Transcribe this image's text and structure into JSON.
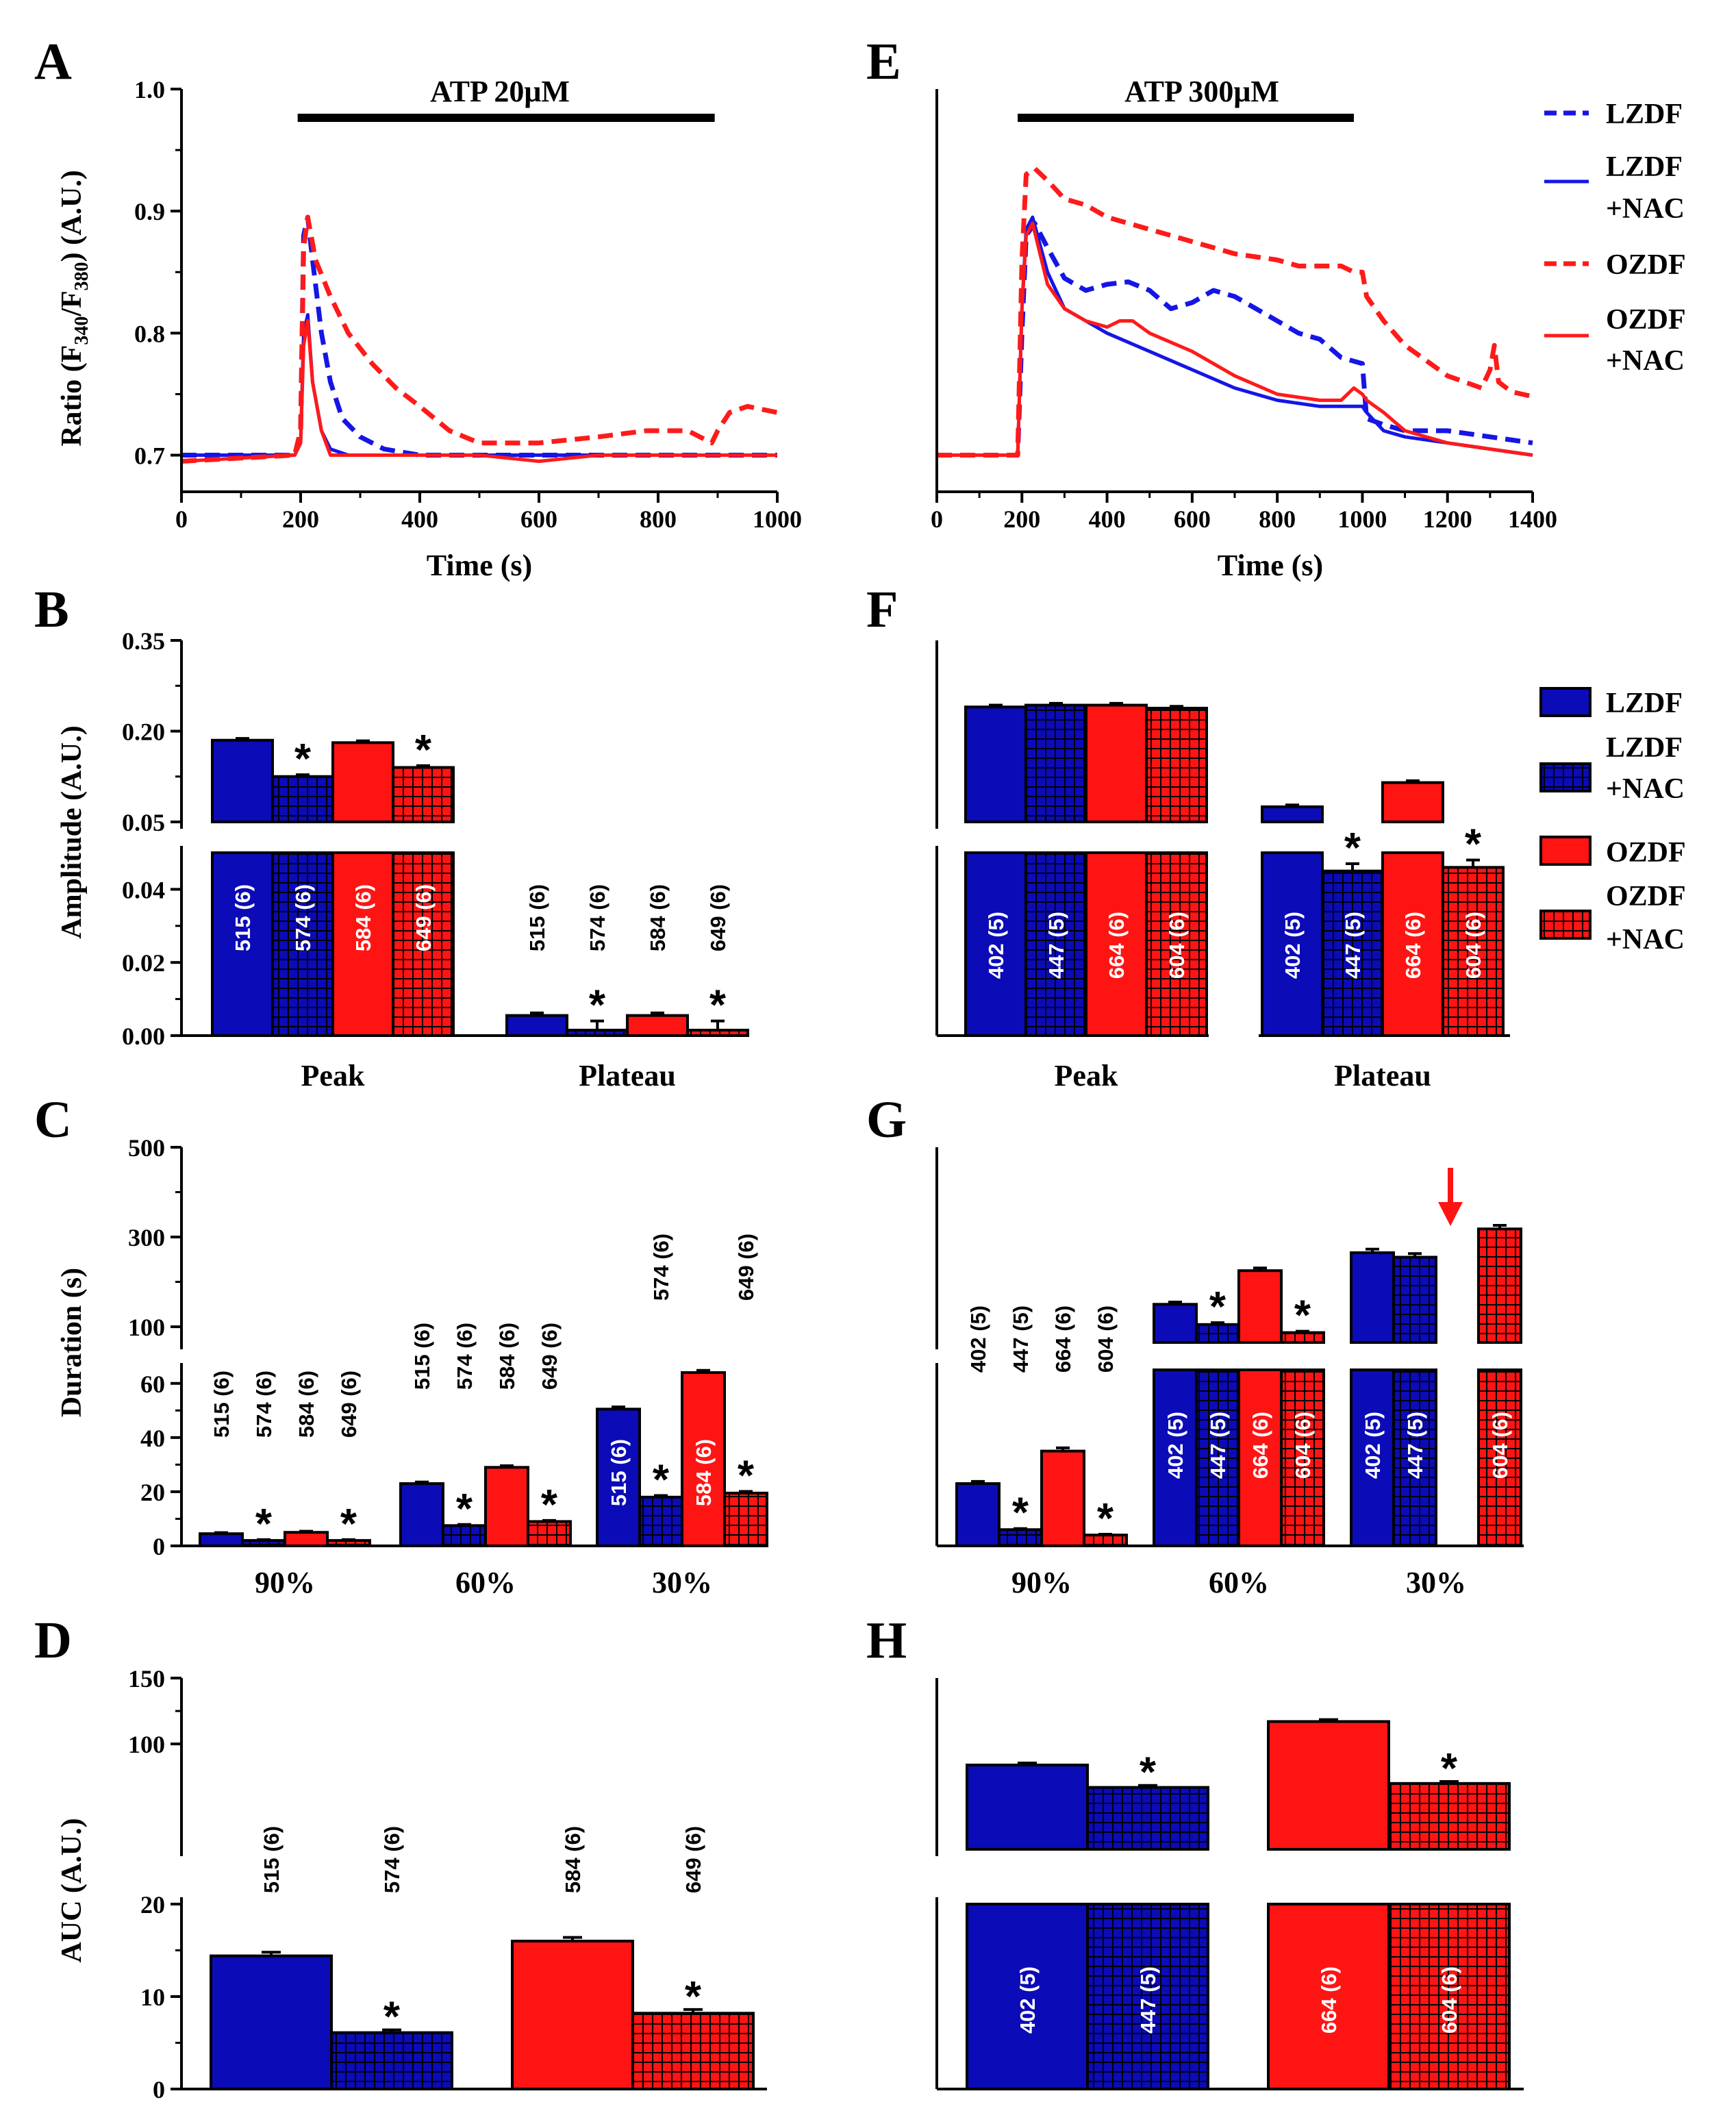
{
  "panel_labels": {
    "A": "A",
    "B": "B",
    "C": "C",
    "D": "D",
    "E": "E",
    "F": "F",
    "G": "G",
    "H": "H"
  },
  "colors": {
    "LZDF": "#1515e6",
    "OZDF": "#ff1a1a",
    "LZDF_bar": "#0b0bb8",
    "OZDF_bar": "#ff1414"
  },
  "legend": {
    "lines": [
      {
        "label": [
          "LZDF"
        ],
        "color": "#1515e6",
        "style": "dashed"
      },
      {
        "label": [
          "LZDF",
          "+NAC"
        ],
        "color": "#1515e6",
        "style": "solid"
      },
      {
        "label": [
          "OZDF"
        ],
        "color": "#ff1a1a",
        "style": "dashed"
      },
      {
        "label": [
          "OZDF",
          "+NAC"
        ],
        "color": "#ff1a1a",
        "style": "solid"
      }
    ],
    "bars": [
      {
        "label": [
          "LZDF"
        ],
        "color": "#0b0bb8",
        "hatched": false
      },
      {
        "label": [
          "LZDF",
          "+NAC"
        ],
        "color": "#0b0bb8",
        "hatched": true
      },
      {
        "label": [
          "OZDF"
        ],
        "color": "#ff1414",
        "hatched": false
      },
      {
        "label": [
          "OZDF",
          "+NAC"
        ],
        "color": "#ff1414",
        "hatched": true
      }
    ]
  },
  "chart_data": [
    {
      "id": "A",
      "type": "line",
      "title": "ATP 20μM",
      "xlabel": "Time (s)",
      "ylabel": "Ratio (F340/F380) (A.U.)",
      "ylabel_main": "Ratio (F",
      "ylabel_sub1": "340",
      "ylabel_mid": "/F",
      "ylabel_sub2": "380",
      "ylabel_end": ") (A.U.)",
      "xlim": [
        0,
        1000
      ],
      "ylim": [
        0.67,
        1.0
      ],
      "xticks": [
        "0",
        "200",
        "400",
        "600",
        "800",
        "1000"
      ],
      "yticks": [
        "0.7",
        "0.8",
        "0.9",
        "1.0"
      ],
      "stimulus": {
        "start": 195,
        "end": 895
      },
      "series": [
        {
          "name": "LZDF",
          "x": [
            0,
            190,
            200,
            205,
            212,
            220,
            235,
            250,
            270,
            300,
            340,
            400,
            500,
            600,
            700,
            800,
            900,
            1000
          ],
          "y": [
            0.7,
            0.7,
            0.72,
            0.88,
            0.895,
            0.86,
            0.8,
            0.76,
            0.73,
            0.715,
            0.705,
            0.7,
            0.7,
            0.7,
            0.7,
            0.7,
            0.7,
            0.7
          ]
        },
        {
          "name": "LZDF+NAC",
          "x": [
            0,
            190,
            200,
            205,
            212,
            220,
            235,
            250,
            280,
            350,
            500,
            700,
            900,
            1000
          ],
          "y": [
            0.7,
            0.7,
            0.71,
            0.8,
            0.815,
            0.76,
            0.72,
            0.705,
            0.7,
            0.7,
            0.7,
            0.7,
            0.7,
            0.7
          ]
        },
        {
          "name": "OZDF",
          "x": [
            0,
            190,
            200,
            205,
            212,
            225,
            250,
            280,
            320,
            360,
            400,
            450,
            500,
            600,
            700,
            780,
            850,
            890,
            900,
            920,
            950,
            1000
          ],
          "y": [
            0.695,
            0.7,
            0.72,
            0.87,
            0.895,
            0.86,
            0.83,
            0.8,
            0.775,
            0.755,
            0.74,
            0.72,
            0.71,
            0.71,
            0.715,
            0.72,
            0.72,
            0.71,
            0.72,
            0.735,
            0.74,
            0.735
          ]
        },
        {
          "name": "OZDF+NAC",
          "x": [
            0,
            190,
            200,
            205,
            212,
            220,
            235,
            250,
            300,
            400,
            500,
            600,
            700,
            800,
            900,
            1000
          ],
          "y": [
            0.695,
            0.7,
            0.71,
            0.79,
            0.81,
            0.76,
            0.72,
            0.7,
            0.7,
            0.7,
            0.7,
            0.695,
            0.7,
            0.7,
            0.7,
            0.7
          ]
        }
      ]
    },
    {
      "id": "E",
      "type": "line",
      "title": "ATP 300μM",
      "xlabel": "Time (s)",
      "xlim": [
        0,
        1400
      ],
      "ylim": [
        0.67,
        1.0
      ],
      "xticks": [
        "0",
        "200",
        "400",
        "600",
        "800",
        "1000",
        "1200",
        "1400"
      ],
      "stimulus": {
        "start": 190,
        "end": 980
      },
      "series": [
        {
          "name": "LZDF",
          "x": [
            0,
            190,
            200,
            210,
            230,
            260,
            300,
            350,
            400,
            450,
            500,
            550,
            600,
            650,
            700,
            750,
            800,
            850,
            900,
            950,
            1000,
            1010,
            1050,
            1100,
            1200,
            1300,
            1400
          ],
          "y": [
            0.7,
            0.7,
            0.8,
            0.88,
            0.89,
            0.87,
            0.845,
            0.835,
            0.84,
            0.842,
            0.835,
            0.82,
            0.825,
            0.835,
            0.83,
            0.82,
            0.81,
            0.8,
            0.795,
            0.78,
            0.775,
            0.73,
            0.725,
            0.72,
            0.72,
            0.715,
            0.71
          ]
        },
        {
          "name": "LZDF+NAC",
          "x": [
            0,
            190,
            200,
            210,
            225,
            260,
            300,
            350,
            400,
            500,
            600,
            700,
            800,
            900,
            980,
            1000,
            1010,
            1050,
            1100,
            1200,
            1300,
            1400
          ],
          "y": [
            0.7,
            0.7,
            0.82,
            0.885,
            0.895,
            0.85,
            0.82,
            0.81,
            0.8,
            0.785,
            0.77,
            0.755,
            0.745,
            0.74,
            0.74,
            0.74,
            0.735,
            0.72,
            0.715,
            0.71,
            0.705,
            0.7
          ]
        },
        {
          "name": "OZDF",
          "x": [
            0,
            190,
            200,
            210,
            230,
            260,
            300,
            350,
            400,
            500,
            600,
            700,
            800,
            850,
            900,
            950,
            980,
            1000,
            1010,
            1050,
            1100,
            1200,
            1280,
            1300,
            1310,
            1320,
            1350,
            1400
          ],
          "y": [
            0.7,
            0.7,
            0.86,
            0.93,
            0.935,
            0.925,
            0.91,
            0.905,
            0.895,
            0.885,
            0.875,
            0.865,
            0.86,
            0.855,
            0.855,
            0.855,
            0.85,
            0.85,
            0.83,
            0.81,
            0.79,
            0.765,
            0.755,
            0.77,
            0.79,
            0.76,
            0.752,
            0.748
          ]
        },
        {
          "name": "OZDF+NAC",
          "x": [
            0,
            190,
            200,
            210,
            225,
            260,
            300,
            350,
            400,
            430,
            460,
            500,
            600,
            700,
            800,
            900,
            950,
            980,
            1000,
            1010,
            1050,
            1100,
            1200,
            1300,
            1400
          ],
          "y": [
            0.7,
            0.7,
            0.82,
            0.88,
            0.89,
            0.84,
            0.82,
            0.81,
            0.805,
            0.81,
            0.81,
            0.8,
            0.785,
            0.765,
            0.75,
            0.745,
            0.745,
            0.755,
            0.75,
            0.745,
            0.735,
            0.72,
            0.71,
            0.705,
            0.7
          ]
        }
      ]
    },
    {
      "id": "B",
      "type": "bar",
      "ylabel": "Amplitude (A.U.)",
      "categories": [
        "Peak",
        "Plateau"
      ],
      "broken_axis": {
        "lower": [
          0,
          0.05
        ],
        "upper": [
          0.05,
          0.35
        ]
      },
      "lower_ticks": [
        "0.00",
        "0.02",
        "0.04"
      ],
      "upper_ticks": [
        "0.05",
        "0.20",
        "0.35"
      ],
      "series": [
        {
          "name": "LZDF",
          "values": [
            0.185,
            0.0055
          ],
          "errors": [
            0.003,
            0.0007
          ],
          "n": [
            "515 (6)",
            "515 (6)"
          ],
          "sig": [
            false,
            false
          ]
        },
        {
          "name": "LZDF+NAC",
          "values": [
            0.125,
            0.0015
          ],
          "errors": [
            0.003,
            0.0025
          ],
          "n": [
            "574 (6)",
            "574 (6)"
          ],
          "sig": [
            true,
            true
          ]
        },
        {
          "name": "OZDF",
          "values": [
            0.181,
            0.0055
          ],
          "errors": [
            0.003,
            0.0007
          ],
          "n": [
            "584 (6)",
            "584 (6)"
          ],
          "sig": [
            false,
            false
          ]
        },
        {
          "name": "OZDF+NAC",
          "values": [
            0.14,
            0.0015
          ],
          "errors": [
            0.003,
            0.0025
          ],
          "n": [
            "649 (6)",
            "649 (6)"
          ],
          "sig": [
            true,
            true
          ]
        }
      ]
    },
    {
      "id": "F",
      "type": "bar",
      "categories": [
        "Peak",
        "Plateau"
      ],
      "broken_axis": {
        "lower": [
          0,
          0.05
        ],
        "upper": [
          0.05,
          0.35
        ]
      },
      "series": [
        {
          "name": "LZDF",
          "values": [
            0.24,
            0.075
          ],
          "errors": [
            0.003,
            0.003
          ],
          "n": [
            "402 (5)",
            "402 (5)"
          ],
          "sig": [
            false,
            false
          ]
        },
        {
          "name": "LZDF+NAC",
          "values": [
            0.243,
            0.045
          ],
          "errors": [
            0.003,
            0.002
          ],
          "n": [
            "447 (5)",
            "447 (5)"
          ],
          "sig": [
            false,
            true
          ]
        },
        {
          "name": "OZDF",
          "values": [
            0.243,
            0.115
          ],
          "errors": [
            0.003,
            0.003
          ],
          "n": [
            "664 (6)",
            "664 (6)"
          ],
          "sig": [
            false,
            false
          ]
        },
        {
          "name": "OZDF+NAC",
          "values": [
            0.238,
            0.046
          ],
          "errors": [
            0.003,
            0.002
          ],
          "n": [
            "604 (6)",
            "604 (6)"
          ],
          "sig": [
            false,
            true
          ]
        }
      ]
    },
    {
      "id": "C",
      "type": "bar",
      "ylabel": "Duration (s)",
      "categories": [
        "90%",
        "60%",
        "30%"
      ],
      "broken_axis": {
        "lower": [
          0,
          65
        ],
        "upper": [
          65,
          500
        ]
      },
      "lower_ticks": [
        "0",
        "20",
        "40",
        "60"
      ],
      "upper_ticks": [
        "100",
        "300",
        "500"
      ],
      "series": [
        {
          "name": "LZDF",
          "values": [
            4.5,
            23,
            50.5
          ],
          "errors": [
            0.4,
            0.6,
            0.8
          ],
          "n": [
            "515 (6)",
            "515 (6)",
            "515 (6)"
          ],
          "sig": [
            false,
            false,
            false
          ]
        },
        {
          "name": "LZDF+NAC",
          "values": [
            2,
            7.5,
            18
          ],
          "errors": [
            0.3,
            0.4,
            0.6
          ],
          "n": [
            "574 (6)",
            "574 (6)",
            "574 (6)"
          ],
          "sig": [
            true,
            true,
            true
          ]
        },
        {
          "name": "OZDF",
          "values": [
            5,
            29,
            64
          ],
          "errors": [
            0.4,
            0.6,
            0.8
          ],
          "n": [
            "584 (6)",
            "584 (6)",
            "584 (6)"
          ],
          "sig": [
            false,
            false,
            false
          ]
        },
        {
          "name": "OZDF+NAC",
          "values": [
            2,
            9,
            19.5
          ],
          "errors": [
            0.3,
            0.4,
            0.6
          ],
          "n": [
            "649 (6)",
            "649 (6)",
            "649 (6)"
          ],
          "sig": [
            true,
            true,
            true
          ]
        }
      ]
    },
    {
      "id": "G",
      "type": "bar",
      "categories": [
        "90%",
        "60%",
        "30%"
      ],
      "broken_axis": {
        "lower": [
          0,
          65
        ],
        "upper": [
          65,
          500
        ]
      },
      "series": [
        {
          "name": "LZDF",
          "values": [
            23,
            150,
            265
          ],
          "errors": [
            0.8,
            5,
            8
          ],
          "n": [
            "402 (5)",
            "402 (5)",
            "402 (5)"
          ],
          "sig": [
            false,
            false,
            false
          ]
        },
        {
          "name": "LZDF+NAC",
          "values": [
            6,
            105,
            255
          ],
          "errors": [
            0.4,
            4,
            8
          ],
          "n": [
            "447 (5)",
            "447 (5)",
            "447 (5)"
          ],
          "sig": [
            true,
            true,
            false
          ]
        },
        {
          "name": "OZDF",
          "values": [
            35,
            225,
            null
          ],
          "errors": [
            1.2,
            6,
            0
          ],
          "n": [
            "664 (6)",
            "664 (6)",
            ""
          ],
          "sig": [
            false,
            false,
            false
          ]
        },
        {
          "name": "OZDF+NAC",
          "values": [
            4,
            87,
            318
          ],
          "errors": [
            0.3,
            3,
            8
          ],
          "n": [
            "604 (6)",
            "604 (6)",
            "604 (6)"
          ],
          "sig": [
            true,
            true,
            false
          ]
        }
      ],
      "annotation": "red arrow: OZDF 30% not reached"
    },
    {
      "id": "D",
      "type": "bar",
      "ylabel": "AUC (A.U.)",
      "categories": [
        "LZDF",
        "LZDF+NAC",
        "OZDF",
        "OZDF+NAC"
      ],
      "broken_axis": {
        "lower": [
          0,
          20
        ],
        "upper": [
          20,
          150
        ]
      },
      "lower_ticks": [
        "0",
        "10",
        "20"
      ],
      "upper_ticks": [
        "100",
        "150"
      ],
      "series": [
        {
          "name": "AUC",
          "values": [
            14.4,
            6.1,
            16,
            8.2
          ],
          "errors": [
            0.4,
            0.3,
            0.4,
            0.4
          ],
          "n": [
            "515 (6)",
            "574 (6)",
            "584 (6)",
            "649 (6)"
          ],
          "sig": [
            false,
            true,
            false,
            true
          ]
        }
      ]
    },
    {
      "id": "H",
      "type": "bar",
      "categories": [
        "LZDF",
        "LZDF+NAC",
        "OZDF",
        "OZDF+NAC"
      ],
      "broken_axis": {
        "lower": [
          0,
          20
        ],
        "upper": [
          20,
          150
        ]
      },
      "series": [
        {
          "name": "AUC",
          "values": [
            84,
            67,
            117,
            70
          ],
          "errors": [
            1.5,
            1.5,
            1.5,
            1.5
          ],
          "n": [
            "402 (5)",
            "447 (5)",
            "664 (6)",
            "604 (6)"
          ],
          "sig": [
            false,
            true,
            false,
            true
          ]
        }
      ]
    }
  ]
}
